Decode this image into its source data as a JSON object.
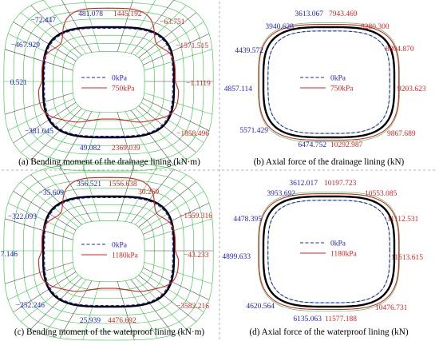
{
  "colors": {
    "blue": "#1d1dc9",
    "red": "#d42424",
    "grid_green": "#2fbf3f",
    "lining_black": "#000000",
    "divider": "#9a9a9a"
  },
  "panels": [
    {
      "id": "a",
      "kind": "moment",
      "caption": "(a) Bending moment of the drainage lining (kN·m)",
      "legend": [
        "0kPa",
        "750kPa"
      ],
      "labels": [
        {
          "text": "481.078",
          "color": "blue"
        },
        {
          "text": "1445.192",
          "color": "red"
        },
        {
          "text": "−72.447",
          "color": "blue"
        },
        {
          "text": "−63.751",
          "color": "red"
        },
        {
          "text": "−467.929",
          "color": "blue"
        },
        {
          "text": "−1571.515",
          "color": "red"
        },
        {
          "text": "0.521",
          "color": "blue"
        },
        {
          "text": "−1.1119",
          "color": "red"
        },
        {
          "text": "−381.045",
          "color": "blue"
        },
        {
          "text": "−1858.496",
          "color": "red"
        },
        {
          "text": "49.082",
          "color": "blue"
        },
        {
          "text": "2369.039",
          "color": "red"
        }
      ]
    },
    {
      "id": "b",
      "kind": "axial",
      "caption": "(b) Axial force of the drainage lining (kN)",
      "legend": [
        "0kPa",
        "750kPa"
      ],
      "labels": [
        {
          "text": "3613.067",
          "color": "blue"
        },
        {
          "text": "7943.469",
          "color": "red"
        },
        {
          "text": "3940.628",
          "color": "blue"
        },
        {
          "text": "8280.300",
          "color": "red"
        },
        {
          "text": "4439.572",
          "color": "blue"
        },
        {
          "text": "8804.870",
          "color": "red"
        },
        {
          "text": "4857.114",
          "color": "blue"
        },
        {
          "text": "9203.623",
          "color": "red"
        },
        {
          "text": "5571.429",
          "color": "blue"
        },
        {
          "text": "9867.689",
          "color": "red"
        },
        {
          "text": "6474.752",
          "color": "blue"
        },
        {
          "text": "10292.987",
          "color": "red"
        }
      ]
    },
    {
      "id": "c",
      "kind": "moment",
      "caption": "(c) Bending moment of the waterproof lining (kN·m)",
      "legend": [
        "0kPa",
        "1180kPa"
      ],
      "labels": [
        {
          "text": "356.521",
          "color": "blue"
        },
        {
          "text": "1556.638",
          "color": "red"
        },
        {
          "text": "−35.609",
          "color": "blue"
        },
        {
          "text": "30.269",
          "color": "red"
        },
        {
          "text": "−322.093",
          "color": "blue"
        },
        {
          "text": "−1559.316",
          "color": "red"
        },
        {
          "text": "7.146",
          "color": "blue"
        },
        {
          "text": "−43.233",
          "color": "red"
        },
        {
          "text": "−252.246",
          "color": "blue"
        },
        {
          "text": "−3582.216",
          "color": "red"
        },
        {
          "text": "25.939",
          "color": "blue"
        },
        {
          "text": "4476.692",
          "color": "red"
        }
      ]
    },
    {
      "id": "d",
      "kind": "axial",
      "caption": "(d) Axial force of the waterproof lining (kN)",
      "legend": [
        "0kPa",
        "1180kPa"
      ],
      "labels": [
        {
          "text": "3612.017",
          "color": "blue"
        },
        {
          "text": "10197.723",
          "color": "red"
        },
        {
          "text": "3953.692",
          "color": "blue"
        },
        {
          "text": "10553.085",
          "color": "red"
        },
        {
          "text": "4478.395",
          "color": "blue"
        },
        {
          "text": "11112.531",
          "color": "red"
        },
        {
          "text": "4899.633",
          "color": "blue"
        },
        {
          "text": "11513.615",
          "color": "red"
        },
        {
          "text": "4620.564",
          "color": "blue"
        },
        {
          "text": "10476.731",
          "color": "red"
        },
        {
          "text": "6135.063",
          "color": "blue"
        },
        {
          "text": "11577.188",
          "color": "red"
        }
      ]
    }
  ]
}
